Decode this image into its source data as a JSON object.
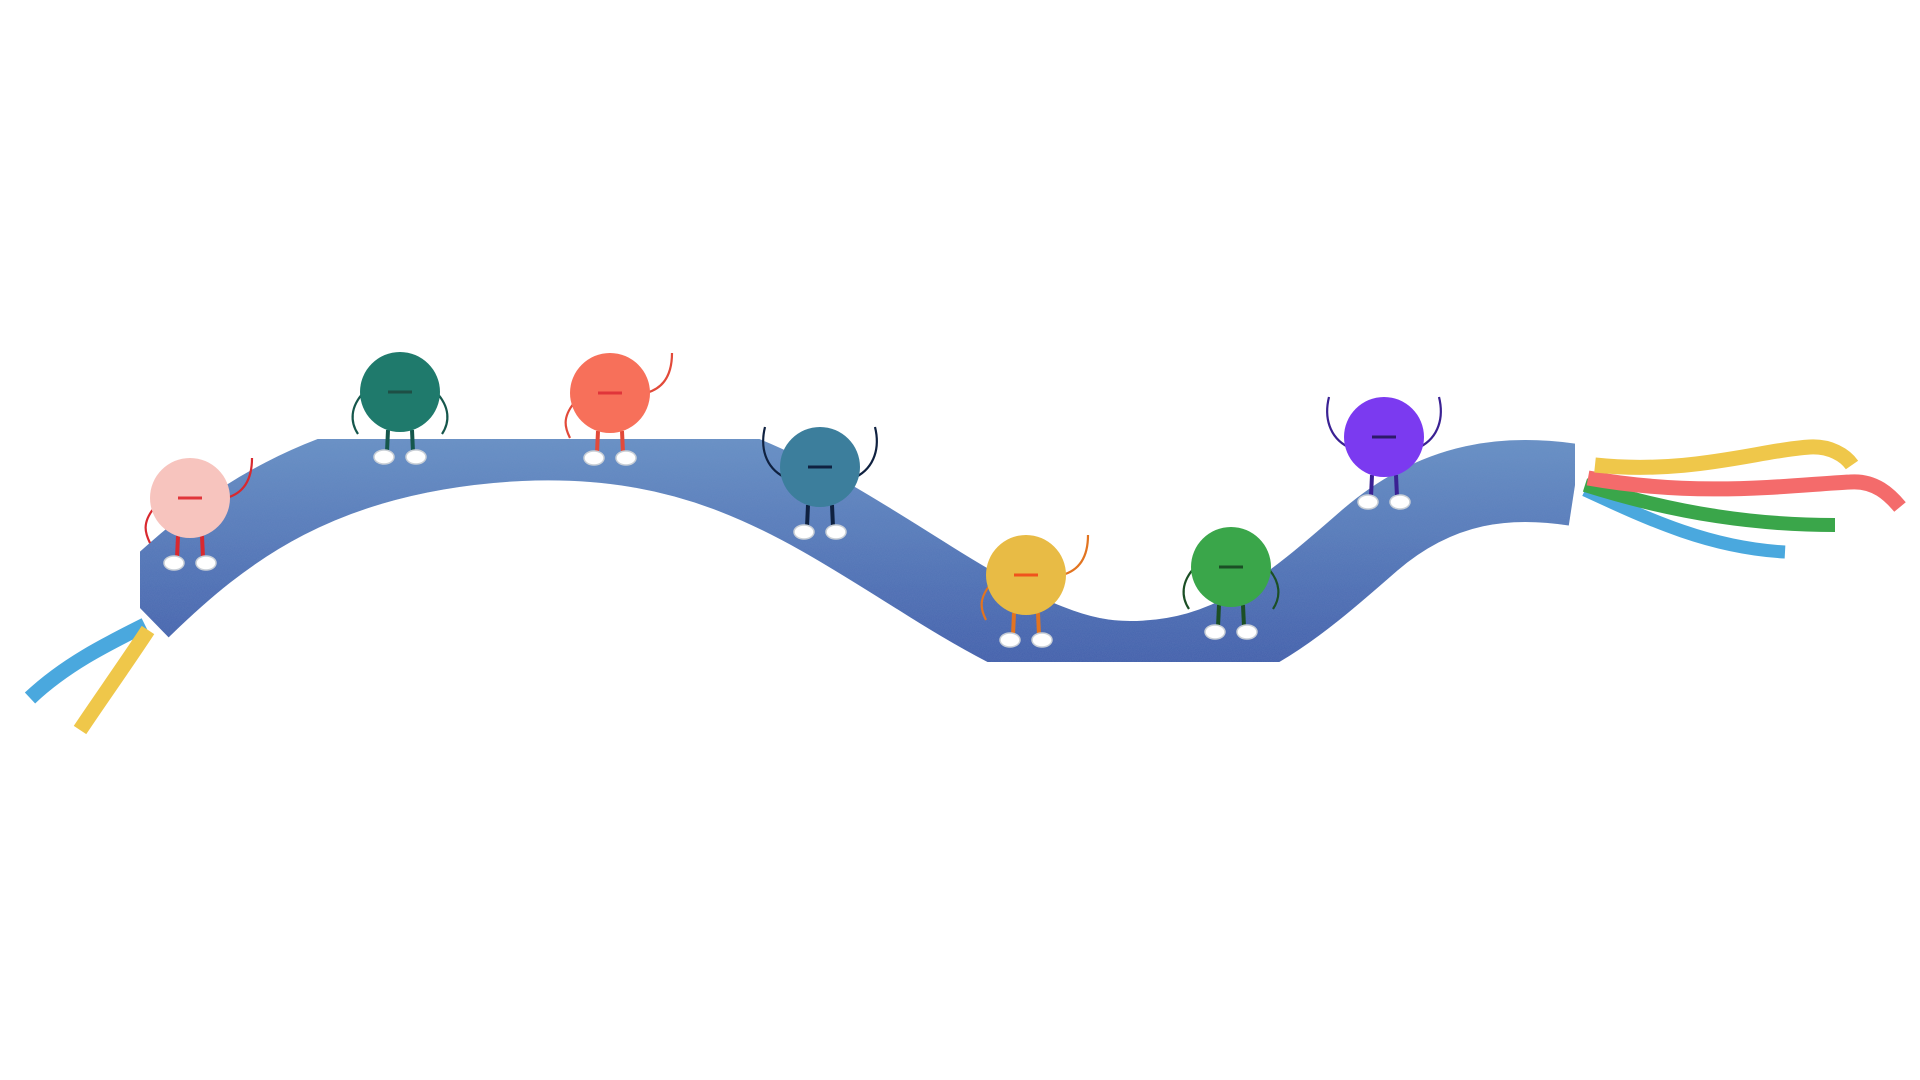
{
  "scene": {
    "background": "#ffffff",
    "cable": {
      "color_light": "#6791c4",
      "color_dark": "#3b5aa8",
      "wires_left": [
        "#4aa8de",
        "#efc74a"
      ],
      "wires_right": [
        "#efc74a",
        "#f46b6b",
        "#3aa64a",
        "#4aa8de"
      ]
    },
    "characters": [
      {
        "name": "pink-ball-character",
        "body": "#f7c4be",
        "mark": "#e0353a",
        "limbs": "#d8292f",
        "pose": "one-up"
      },
      {
        "name": "teal-ball-character",
        "body": "#1f7a6c",
        "mark": "#1e4f45",
        "limbs": "#15574c",
        "pose": "down"
      },
      {
        "name": "coral-ball-character",
        "body": "#f7705a",
        "mark": "#e0353a",
        "limbs": "#e24a3a",
        "pose": "one-up"
      },
      {
        "name": "blue-ball-character",
        "body": "#3c7e9c",
        "mark": "#0f2140",
        "limbs": "#0f2140",
        "pose": "both-up"
      },
      {
        "name": "yellow-ball-character",
        "body": "#e8bb45",
        "mark": "#f0531c",
        "limbs": "#e27420",
        "pose": "one-up"
      },
      {
        "name": "green-ball-character",
        "body": "#3aa64a",
        "mark": "#1b4f25",
        "limbs": "#1b4f25",
        "pose": "down"
      },
      {
        "name": "purple-ball-character",
        "body": "#7b3af0",
        "mark": "#2d1a6a",
        "limbs": "#3a2193",
        "pose": "both-up"
      }
    ]
  }
}
